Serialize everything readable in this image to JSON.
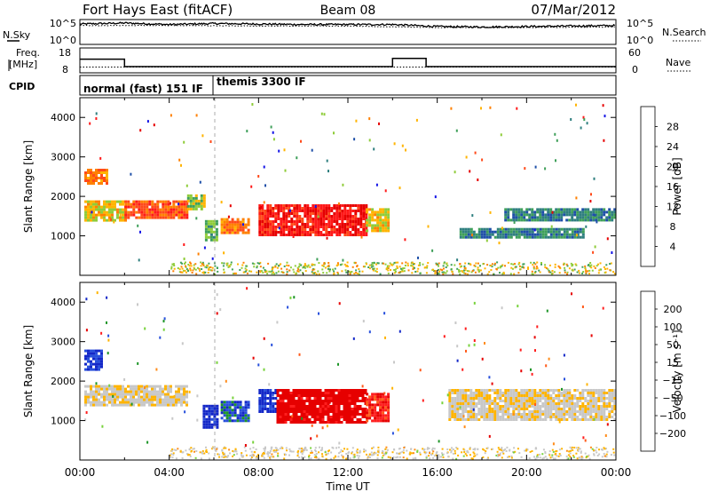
{
  "header": {
    "station": "Fort Hays East (fitACF)",
    "beam": "Beam 08",
    "date": "07/Mar/2012"
  },
  "noise_panel": {
    "left_label": "N.Sky",
    "right_label": "N.Search",
    "left_ticks": [
      "10^5",
      "10^0"
    ],
    "right_ticks": [
      "10^5",
      "10^0"
    ]
  },
  "freq_panel": {
    "left_label_line1": "Freq.",
    "left_label_line2": "[MHz]",
    "right_label": "Nave",
    "left_ticks": [
      "18",
      "8"
    ],
    "right_ticks": [
      "60",
      "0"
    ]
  },
  "cpid_panel": {
    "label": "CPID",
    "segments": [
      {
        "name": "normal (fast) 151 IF",
        "start_hour": 0,
        "end_hour": 6
      },
      {
        "name": "themis 3300 IF",
        "start_hour": 6,
        "end_hour": 24
      }
    ]
  },
  "x_axis": {
    "label": "Time UT",
    "ticks": [
      "00:00",
      "04:00",
      "08:00",
      "12:00",
      "16:00",
      "20:00",
      "00:00"
    ]
  },
  "y_axis": {
    "label": "Slant Range [km]",
    "ticks": [
      "1000",
      "2000",
      "3000",
      "4000"
    ]
  },
  "power_scale": {
    "label": "Power [dB]",
    "ticks": [
      "4",
      "8",
      "12",
      "16",
      "20",
      "24",
      "28"
    ],
    "colors": [
      "#1414e6",
      "#1e4fa8",
      "#2f7f7f",
      "#3fa05a",
      "#8fcc3a",
      "#ffb400",
      "#ff8000",
      "#ff4a1a",
      "#ff1a1a",
      "#e60000"
    ]
  },
  "velocity_scale": {
    "label": "Velocity [m s⁻¹]",
    "ticks": [
      "200",
      "100",
      "50",
      "15",
      "−15",
      "−50",
      "−100",
      "−200"
    ],
    "colors": [
      "#1428c8",
      "#2850dc",
      "#1e9628",
      "#78d23c",
      "#c8c8c8",
      "#c8c8c8",
      "#ffb400",
      "#ff8c1a",
      "#ff5a1a",
      "#ff1e1e",
      "#e60000"
    ]
  },
  "chart_data": [
    {
      "type": "line",
      "title": "N.Sky / N.Search",
      "x_units": "hours UT",
      "xlim": [
        0,
        24
      ],
      "ylim": [
        0,
        5
      ],
      "series": [
        {
          "name": "N.Sky",
          "x": [
            0,
            2,
            4,
            6,
            8,
            10,
            12,
            14,
            16,
            18,
            20,
            22,
            24
          ],
          "values": [
            4.1,
            4.3,
            4.0,
            4.2,
            4.1,
            4.0,
            4.0,
            4.0,
            3.6,
            3.5,
            3.6,
            3.7,
            3.8
          ]
        },
        {
          "name": "N.Search",
          "x": [
            0,
            4,
            8,
            12,
            16,
            20,
            24
          ],
          "values": [
            3.8,
            3.8,
            3.7,
            3.7,
            3.4,
            3.4,
            3.5
          ]
        }
      ]
    },
    {
      "type": "line",
      "title": "Freq. / Nave",
      "x_units": "hours UT",
      "xlim": [
        0,
        24
      ],
      "series": [
        {
          "name": "Freq.",
          "x": [
            0,
            2,
            2,
            14,
            14,
            15.5,
            15.5,
            24
          ],
          "values": [
            13.5,
            13.5,
            10.5,
            10.5,
            13.8,
            13.8,
            10.5,
            10.5
          ],
          "ylim": [
            8,
            18
          ]
        },
        {
          "name": "Nave",
          "x": [
            0,
            24
          ],
          "values": [
            14,
            14
          ],
          "ylim": [
            0,
            60
          ]
        }
      ]
    },
    {
      "type": "heatmap",
      "title": "Power [dB]",
      "x_units": "hours UT",
      "y_units": "km",
      "xlim": [
        0,
        24
      ],
      "ylim": [
        0,
        4500
      ],
      "clim": [
        0,
        30
      ],
      "regions": [
        {
          "x": [
            0.2,
            1.2
          ],
          "y": [
            2300,
            2700
          ],
          "value": 20
        },
        {
          "x": [
            0.2,
            2.0
          ],
          "y": [
            1400,
            1900
          ],
          "value": 16
        },
        {
          "x": [
            2.0,
            4.8
          ],
          "y": [
            1450,
            1900
          ],
          "value": 22
        },
        {
          "x": [
            4.8,
            5.6
          ],
          "y": [
            1700,
            2050
          ],
          "value": 14
        },
        {
          "x": [
            5.6,
            6.1
          ],
          "y": [
            900,
            1400
          ],
          "value": 12
        },
        {
          "x": [
            6.3,
            7.5
          ],
          "y": [
            1050,
            1450
          ],
          "value": 20
        },
        {
          "x": [
            8.0,
            12.8
          ],
          "y": [
            1050,
            1800
          ],
          "value": 26
        },
        {
          "x": [
            12.8,
            13.8
          ],
          "y": [
            1100,
            1700
          ],
          "value": 16
        },
        {
          "x": [
            17.0,
            22.5
          ],
          "y": [
            950,
            1200
          ],
          "value": 8
        },
        {
          "x": [
            19.0,
            23.9
          ],
          "y": [
            1400,
            1700
          ],
          "value": 8
        }
      ]
    },
    {
      "type": "heatmap",
      "title": "Velocity [m s⁻¹]",
      "x_units": "hours UT",
      "y_units": "km",
      "xlim": [
        0,
        24
      ],
      "ylim": [
        0,
        4500
      ],
      "clim": [
        -200,
        200
      ],
      "regions": [
        {
          "x": [
            0.2,
            1.0
          ],
          "y": [
            2300,
            2800
          ],
          "value": 180
        },
        {
          "x": [
            0.2,
            4.8
          ],
          "y": [
            1400,
            1900
          ],
          "value": 0
        },
        {
          "x": [
            5.5,
            6.2
          ],
          "y": [
            850,
            1400
          ],
          "value": 200
        },
        {
          "x": [
            6.3,
            7.5
          ],
          "y": [
            1000,
            1500
          ],
          "value": 150
        },
        {
          "x": [
            8.0,
            8.8
          ],
          "y": [
            1200,
            1800
          ],
          "value": 180
        },
        {
          "x": [
            8.8,
            12.8
          ],
          "y": [
            950,
            1800
          ],
          "value": -200
        },
        {
          "x": [
            12.8,
            13.8
          ],
          "y": [
            1000,
            1700
          ],
          "value": -150
        },
        {
          "x": [
            16.5,
            23.9
          ],
          "y": [
            1000,
            1800
          ],
          "value": 0
        }
      ]
    }
  ]
}
